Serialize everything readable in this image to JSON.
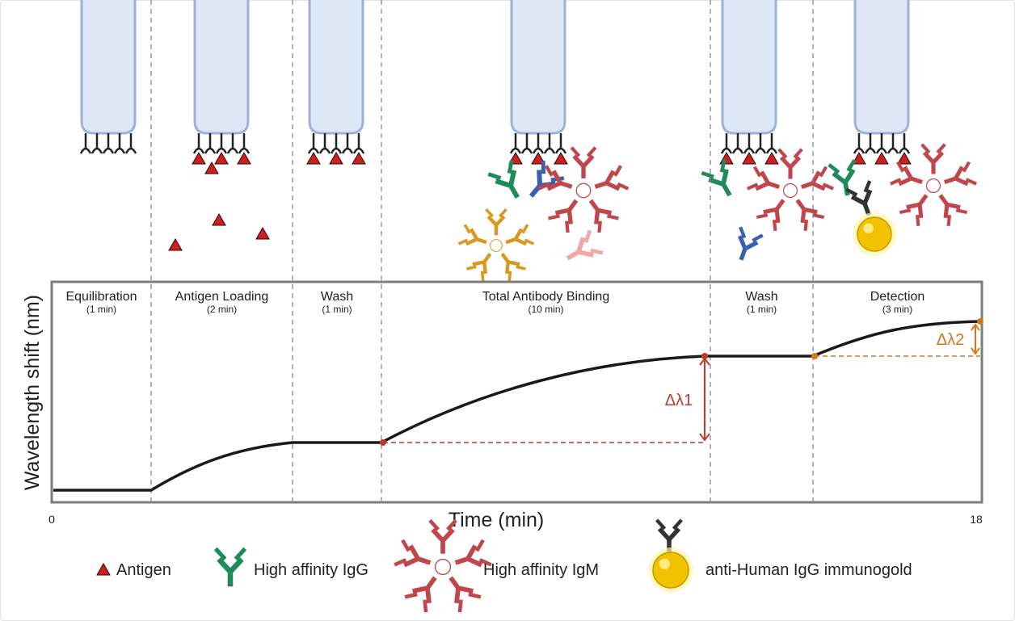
{
  "chart_data": {
    "type": "line",
    "xlabel": "Time (min)",
    "ylabel": "Wavelength shift (nm)",
    "x_ticks": [
      "0",
      "18"
    ],
    "xlim": [
      0,
      18
    ],
    "grid": false,
    "phases": [
      {
        "label": "Equilibration",
        "duration": "(1 min)"
      },
      {
        "label": "Antigen Loading",
        "duration": "(2 min)"
      },
      {
        "label": "Wash",
        "duration": "(1 min)"
      },
      {
        "label": "Total Antibody Binding",
        "duration": "(10 min)"
      },
      {
        "label": "Wash",
        "duration": "(1 min)"
      },
      {
        "label": "Detection",
        "duration": "(3 min)"
      }
    ],
    "annotations": [
      {
        "label": "Δλ1",
        "color": "#c0392b"
      },
      {
        "label": "Δλ2",
        "color": "#d4771f"
      }
    ]
  },
  "legend": [
    {
      "icon": "antigen-triangle",
      "label": "Antigen",
      "color": "#cc1f1f"
    },
    {
      "icon": "igg-antibody",
      "label": "High affinity IgG",
      "color": "#1f8a5a"
    },
    {
      "icon": "igm-pentamer",
      "label": "High affinity IgM",
      "color": "#c0464c"
    },
    {
      "icon": "immunogold",
      "label": "anti-Human IgG immunogold",
      "color": "#f2c200"
    }
  ],
  "colors": {
    "probe_fill": "#dde7f6",
    "probe_stroke": "#9db2d6",
    "curve": "#1a1a1a",
    "frame": "#7a7d7a",
    "igg_blue": "#3b5fb0",
    "igm_orange": "#d89a1e",
    "igg_pink": "#f0a8a8",
    "anti_igg": "#333333"
  }
}
